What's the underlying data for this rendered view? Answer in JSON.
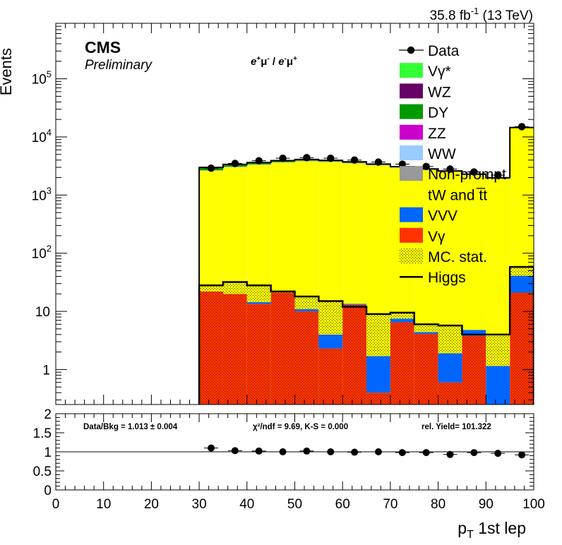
{
  "header": {
    "lumi": "35.8 fb",
    "lumi_exp": "-1",
    "energy": "(13 TeV)",
    "cms": "CMS",
    "prelim": "Preliminary",
    "channel_a": "e",
    "channel_a_sup": "+",
    "channel_b": "μ",
    "channel_b_sup": "-",
    "channel_sep": " / ",
    "channel_c": "e",
    "channel_c_sup": "-",
    "channel_d": "μ",
    "channel_d_sup": "+"
  },
  "legend": {
    "items": [
      {
        "label": "Data",
        "color": "#000000",
        "kind": "marker"
      },
      {
        "label": "Vγ*",
        "color": "#33ff33",
        "kind": "box"
      },
      {
        "label": "WZ",
        "color": "#660066",
        "kind": "box"
      },
      {
        "label": "DY",
        "color": "#009900",
        "kind": "box"
      },
      {
        "label": "ZZ",
        "color": "#cc00cc",
        "kind": "box"
      },
      {
        "label": "WW",
        "color": "#99ccff",
        "kind": "box"
      },
      {
        "label": "Non-prompt",
        "color": "#999999",
        "kind": "box"
      },
      {
        "label": "tW and t̅t",
        "color": "#ffff00",
        "kind": "box"
      },
      {
        "label": "VVV",
        "color": "#0066ff",
        "kind": "box"
      },
      {
        "label": "Vγ",
        "color": "#ff3300",
        "kind": "box"
      },
      {
        "label": "MC. stat.",
        "color": "#ffff00",
        "kind": "hatch"
      },
      {
        "label": "Higgs",
        "color": "#000000",
        "kind": "line"
      }
    ]
  },
  "stats": {
    "data_bkg": "Data/Bkg = 1.013 ± 0.004",
    "chi2": "χ²/ndf = 9.69,   K-S = 0.000",
    "yield": "rel. Yield= 101.322"
  },
  "chart_data": [
    {
      "type": "bar",
      "title": "",
      "ylabel": "Events",
      "xlabel": "",
      "log_y": true,
      "ylim": [
        0.25,
        900000
      ],
      "xlim": [
        0,
        100
      ],
      "x_edges": [
        30,
        35,
        40,
        45,
        50,
        55,
        60,
        65,
        70,
        75,
        80,
        85,
        90,
        95,
        100
      ],
      "y_ticks": [
        "1",
        "10",
        "10²",
        "10³",
        "10⁴",
        "10⁵"
      ],
      "series": [
        {
          "name": "Vγ",
          "color": "#ff3300",
          "values": [
            22,
            20,
            13.5,
            21,
            10,
            2.3,
            13,
            0.4,
            6.5,
            4.1,
            0.6,
            3.8,
            0.25,
            21
          ]
        },
        {
          "name": "VVV",
          "color": "#0066ff",
          "values": [
            0,
            0,
            1,
            0,
            1,
            1.7,
            0.5,
            1.3,
            1,
            0.3,
            1.3,
            1,
            0.9,
            20
          ]
        },
        {
          "name": "tW and t̅t",
          "color": "#ffff00",
          "values": [
            2600,
            3000,
            3300,
            3600,
            3800,
            3700,
            3500,
            3250,
            2950,
            2700,
            2500,
            2200,
            1900,
            14500
          ]
        },
        {
          "name": "Non-prompt",
          "color": "#999999",
          "values": [
            50,
            60,
            70,
            80,
            90,
            90,
            80,
            70,
            70,
            60,
            55,
            50,
            50,
            0
          ]
        },
        {
          "name": "WW",
          "color": "#99ccff",
          "values": [
            10,
            10,
            10,
            10,
            10,
            10,
            10,
            10,
            10,
            10,
            10,
            10,
            10,
            0
          ]
        },
        {
          "name": "DY",
          "color": "#009900",
          "values": [
            280,
            250,
            200,
            180,
            150,
            120,
            100,
            60,
            40,
            30,
            25,
            20,
            15,
            0
          ]
        },
        {
          "name": "Vγ*",
          "color": "#33ff33",
          "values": [
            30,
            30,
            30,
            30,
            30,
            30,
            20,
            20,
            15,
            10,
            10,
            10,
            10,
            0
          ]
        }
      ],
      "higgs": {
        "name": "Higgs",
        "values": [
          28,
          32,
          28,
          22,
          18,
          15,
          12,
          9,
          9.5,
          6,
          5.7,
          4,
          4,
          58
        ]
      },
      "data": {
        "name": "Data",
        "x": [
          32.5,
          37.5,
          42.5,
          47.5,
          52.5,
          57.5,
          62.5,
          67.5,
          72.5,
          77.5,
          82.5,
          87.5,
          92.5,
          97.5
        ],
        "y": [
          2900,
          3500,
          3900,
          4300,
          4400,
          4300,
          4000,
          3700,
          3400,
          3100,
          2800,
          2500,
          2200,
          15000
        ]
      }
    },
    {
      "type": "scatter",
      "title": "",
      "ylabel": "",
      "xlabel": "p_T 1st lep",
      "xlabel_main": "p",
      "xlabel_sub": "T",
      "xlabel_rest": " 1st lep",
      "xlim": [
        0,
        100
      ],
      "ylim": [
        0,
        2
      ],
      "y_ticks": [
        "0",
        "0.5",
        "1",
        "1.5",
        "2"
      ],
      "x_ticks": [
        "0",
        "10",
        "20",
        "30",
        "40",
        "50",
        "60",
        "70",
        "80",
        "90",
        "100"
      ],
      "reference_line": 1,
      "x": [
        32.5,
        37.5,
        42.5,
        47.5,
        52.5,
        57.5,
        62.5,
        67.5,
        72.5,
        77.5,
        82.5,
        87.5,
        92.5,
        97.5
      ],
      "y": [
        1.1,
        1.03,
        1.02,
        1.0,
        1.02,
        1.0,
        0.99,
        1.0,
        0.98,
        0.98,
        0.93,
        0.98,
        0.96,
        0.92
      ]
    }
  ]
}
